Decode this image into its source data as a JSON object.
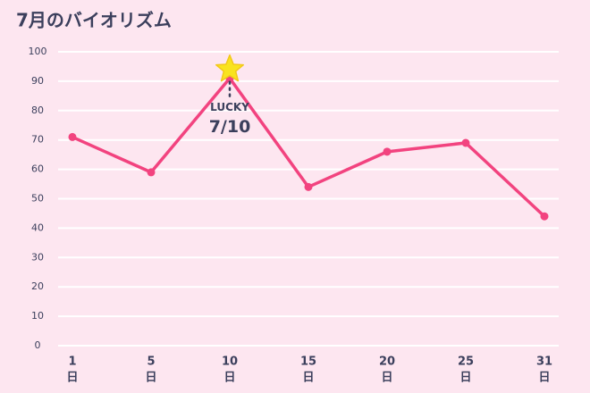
{
  "chart_data": {
    "type": "line",
    "title": "7月のバイオリズム",
    "categories": [
      "1",
      "5",
      "10",
      "15",
      "20",
      "25",
      "31"
    ],
    "x_unit": "日",
    "values": [
      71,
      59,
      91,
      54,
      66,
      69,
      44
    ],
    "color": "#f2437f",
    "ylim": [
      0,
      100
    ],
    "yticks": [
      0,
      10,
      20,
      30,
      40,
      50,
      60,
      70,
      80,
      90,
      100
    ],
    "grid": true,
    "annotation": {
      "label": "LUCKY",
      "date": "7/10"
    }
  }
}
